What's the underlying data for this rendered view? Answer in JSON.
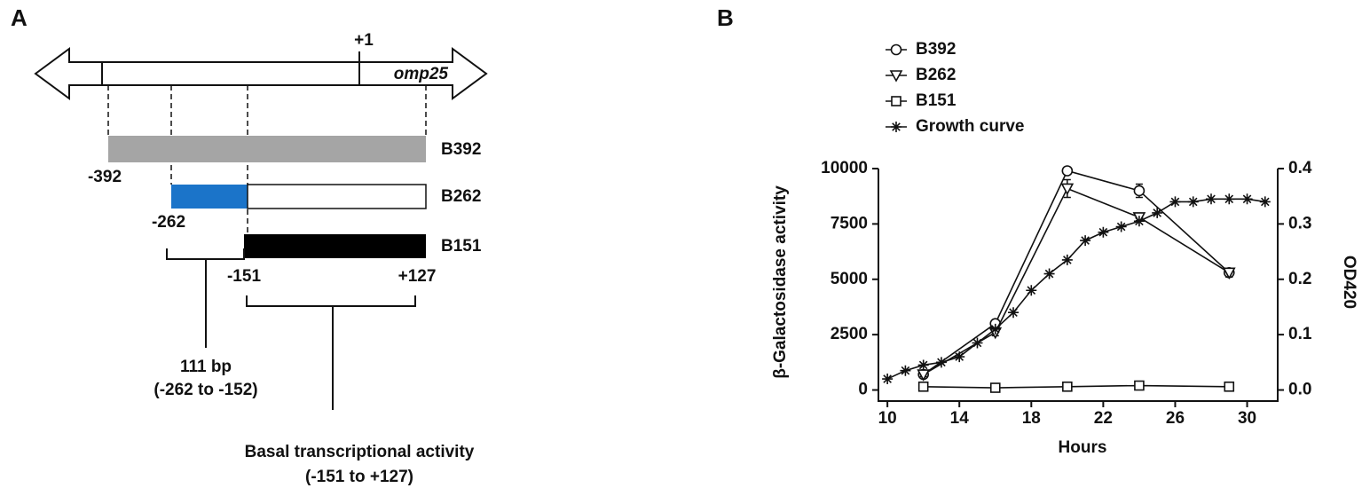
{
  "panel_a": {
    "label": "A",
    "tss": "+1",
    "gene": "omp25",
    "constructs": [
      "B392",
      "B262",
      "B151"
    ],
    "positions": [
      "-392",
      "-262",
      "-151",
      "+127"
    ],
    "region_1": {
      "title": "111 bp",
      "range": "(-262 to -152)"
    },
    "region_2": {
      "title": "Basal transcriptional activity",
      "range": "(-151 to +127)"
    }
  },
  "chart_data": {
    "type": "line",
    "panel_label": "B",
    "xlabel": "Hours",
    "ylabel": "β-Galactosidase activity",
    "y2label": "OD420",
    "xlim": [
      9.5,
      31.7
    ],
    "xticks": [
      10,
      14,
      18,
      22,
      26,
      30
    ],
    "ylim": [
      -500,
      10000
    ],
    "yticks": [
      0,
      2500,
      5000,
      7500,
      10000
    ],
    "y2lim": [
      -0.02,
      0.4
    ],
    "y2ticks": [
      {
        "value": 0,
        "label": "0.0"
      },
      0.1,
      0.2,
      0.3,
      0.4
    ],
    "series": [
      {
        "name": "B392",
        "marker": "circle",
        "color": "#111111",
        "x": [
          12,
          16,
          20,
          24,
          29
        ],
        "values": [
          700,
          3000,
          9900,
          9000,
          5300
        ],
        "errors": [
          100,
          150,
          150,
          300,
          200
        ]
      },
      {
        "name": "B262",
        "marker": "triangle",
        "color": "#111111",
        "x": [
          12,
          16,
          20,
          24,
          29
        ],
        "values": [
          700,
          2600,
          9100,
          7800,
          5300
        ],
        "errors": [
          100,
          150,
          400,
          150,
          200
        ]
      },
      {
        "name": "B151",
        "marker": "square",
        "color": "#111111",
        "x": [
          12,
          16,
          20,
          24,
          29
        ],
        "values": [
          150,
          100,
          150,
          200,
          150
        ]
      },
      {
        "name": "Growth curve",
        "marker": "star",
        "color": "#111111",
        "axis": "y2",
        "x": [
          10,
          11,
          12,
          13,
          14,
          15,
          16,
          17,
          18,
          19,
          20,
          21,
          22,
          23,
          24,
          25,
          26,
          27,
          28,
          29,
          30,
          31
        ],
        "values": [
          0.02,
          0.035,
          0.045,
          0.05,
          0.06,
          0.085,
          0.11,
          0.14,
          0.18,
          0.21,
          0.235,
          0.27,
          0.285,
          0.295,
          0.305,
          0.32,
          0.34,
          0.34,
          0.345,
          0.345,
          0.345,
          0.34
        ]
      }
    ]
  }
}
